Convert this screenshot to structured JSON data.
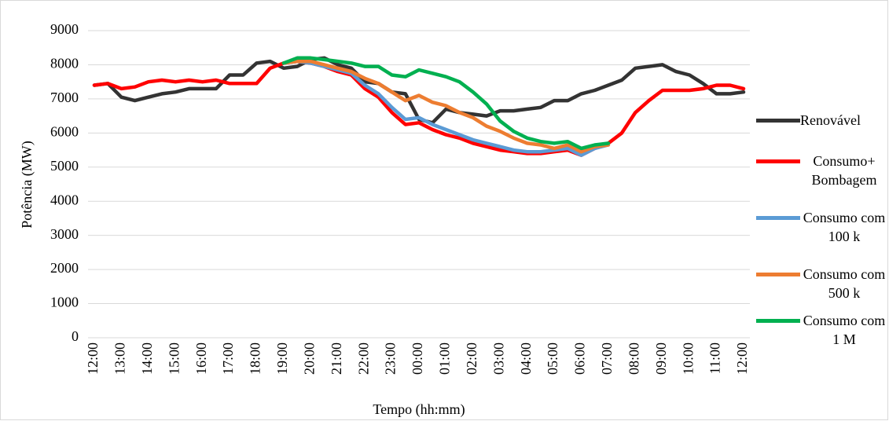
{
  "chart_data": {
    "type": "line",
    "y_label": "Potência (MW)",
    "x_label": "Tempo (hh:mm)",
    "categories": [
      "12:00",
      null,
      "13:00",
      null,
      "14:00",
      null,
      "15:00",
      null,
      "16:00",
      null,
      "17:00",
      null,
      "18:00",
      null,
      "19:00",
      null,
      "20:00",
      null,
      "21:00",
      null,
      "22:00",
      null,
      "23:00",
      null,
      "00:00",
      null,
      "01:00",
      null,
      "02:00",
      null,
      "03:00",
      null,
      "04:00",
      null,
      "05:00",
      null,
      "06:00",
      null,
      "07:00",
      null,
      "08:00",
      null,
      "09:00",
      null,
      "10:00",
      null,
      "11:00",
      null,
      "12:00"
    ],
    "ylim": [
      0,
      9000
    ],
    "yticks": [
      0,
      1000,
      2000,
      3000,
      4000,
      5000,
      6000,
      7000,
      8000,
      9000
    ],
    "grid": true,
    "series": [
      {
        "name": "Renovável",
        "color": "#333333",
        "values": [
          7400,
          7450,
          7050,
          6950,
          7050,
          7150,
          7200,
          7300,
          7300,
          7300,
          7700,
          7700,
          8050,
          8100,
          7900,
          7950,
          8150,
          8200,
          8000,
          7900,
          7500,
          7450,
          7200,
          7150,
          6400,
          6300,
          6700,
          6600,
          6550,
          6500,
          6650,
          6650,
          6700,
          6750,
          6950,
          6950,
          7150,
          7250,
          7400,
          7550,
          7900,
          7950,
          8000,
          7800,
          7700,
          7450,
          7150,
          7150,
          7200
        ]
      },
      {
        "name": "Consumo+ Bombagem",
        "color": "#ff0000",
        "values": [
          7400,
          7450,
          7300,
          7350,
          7500,
          7550,
          7500,
          7550,
          7500,
          7550,
          7450,
          7450,
          7450,
          7900,
          8050,
          8100,
          8050,
          7950,
          7800,
          7700,
          7300,
          7050,
          6600,
          6250,
          6300,
          6100,
          5950,
          5850,
          5700,
          5600,
          5500,
          5450,
          5400,
          5400,
          5450,
          5500,
          5350,
          5550,
          5700,
          6000,
          6600,
          6950,
          7250,
          7250,
          7250,
          7300,
          7400,
          7400,
          7300
        ]
      },
      {
        "name": "Consumo com 100 k",
        "color": "#5b9bd5",
        "values": [
          null,
          null,
          null,
          null,
          null,
          null,
          null,
          null,
          null,
          null,
          null,
          null,
          null,
          null,
          8050,
          8100,
          8050,
          7950,
          7850,
          7750,
          7400,
          7150,
          6750,
          6400,
          6450,
          6250,
          6100,
          5950,
          5800,
          5700,
          5600,
          5500,
          5450,
          5450,
          5500,
          5550,
          5350,
          5550,
          5650,
          null,
          null,
          null,
          null,
          null,
          null,
          null,
          null,
          null,
          null
        ]
      },
      {
        "name": "Consumo com 500 k",
        "color": "#ed7d31",
        "values": [
          null,
          null,
          null,
          null,
          null,
          null,
          null,
          null,
          null,
          null,
          null,
          null,
          null,
          null,
          8050,
          8100,
          8100,
          8000,
          7900,
          7800,
          7600,
          7450,
          7200,
          6950,
          7100,
          6900,
          6800,
          6600,
          6450,
          6200,
          6050,
          5850,
          5700,
          5650,
          5550,
          5650,
          5450,
          5600,
          5650,
          null,
          null,
          null,
          null,
          null,
          null,
          null,
          null,
          null,
          null
        ]
      },
      {
        "name": "Consumo com 1 M",
        "color": "#00b050",
        "values": [
          null,
          null,
          null,
          null,
          null,
          null,
          null,
          null,
          null,
          null,
          null,
          null,
          null,
          null,
          8050,
          8200,
          8200,
          8150,
          8100,
          8050,
          7950,
          7950,
          7700,
          7650,
          7850,
          7750,
          7650,
          7500,
          7200,
          6850,
          6350,
          6050,
          5850,
          5750,
          5700,
          5750,
          5550,
          5650,
          5700,
          null,
          null,
          null,
          null,
          null,
          null,
          null,
          null,
          null,
          null
        ]
      }
    ]
  }
}
